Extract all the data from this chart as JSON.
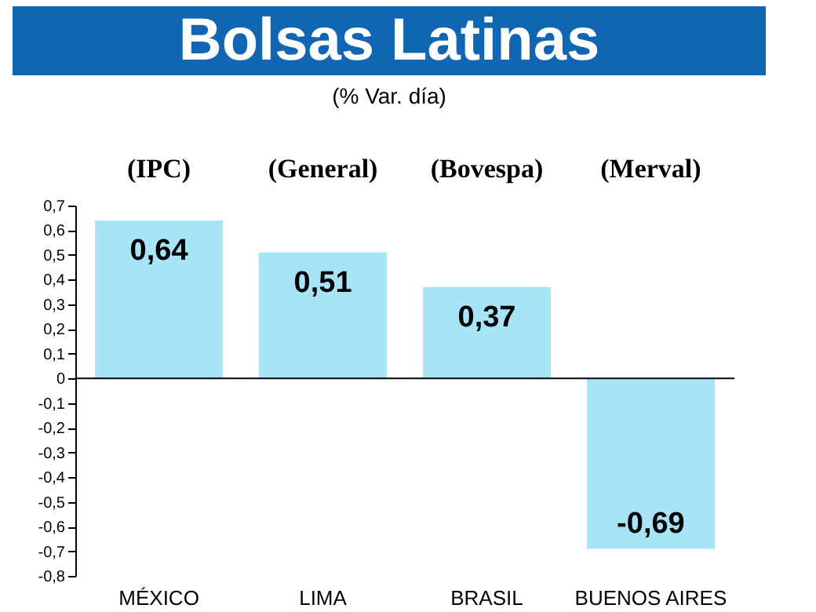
{
  "chart_data": {
    "type": "bar",
    "title": "Bolsas Latinas",
    "subtitle": "(% Var. día)",
    "categories": [
      "MÉXICO",
      "LIMA",
      "BRASIL",
      "BUENOS AIRES"
    ],
    "values": [
      0.64,
      0.51,
      0.37,
      -0.69
    ],
    "value_labels": [
      "0,64",
      "0,51",
      "0,37",
      "-0,69"
    ],
    "color": "#a8e4f8",
    "annotations": [
      "(IPC)",
      "(General)",
      "(Bovespa)",
      "(Merval)"
    ],
    "ylim": [
      -0.8,
      0.7
    ],
    "yticks": [
      {
        "value": 0.7,
        "label": "0,7"
      },
      {
        "value": 0.6,
        "label": "0,6"
      },
      {
        "value": 0.5,
        "label": "0,5"
      },
      {
        "value": 0.4,
        "label": "0,4"
      },
      {
        "value": 0.3,
        "label": "0,3"
      },
      {
        "value": 0.2,
        "label": "0,2"
      },
      {
        "value": 0.1,
        "label": "0,1"
      },
      {
        "value": 0,
        "label": "0"
      },
      {
        "value": -0.1,
        "label": "-0,1"
      },
      {
        "value": -0.2,
        "label": "-0,2"
      },
      {
        "value": -0.3,
        "label": "-0,3"
      },
      {
        "value": -0.4,
        "label": "-0,4"
      },
      {
        "value": -0.5,
        "label": "-0,5"
      },
      {
        "value": -0.6,
        "label": "-0,6"
      },
      {
        "value": -0.7,
        "label": "-0,7"
      },
      {
        "value": -0.8,
        "label": "-0,8"
      }
    ],
    "orientation": "vertical"
  }
}
